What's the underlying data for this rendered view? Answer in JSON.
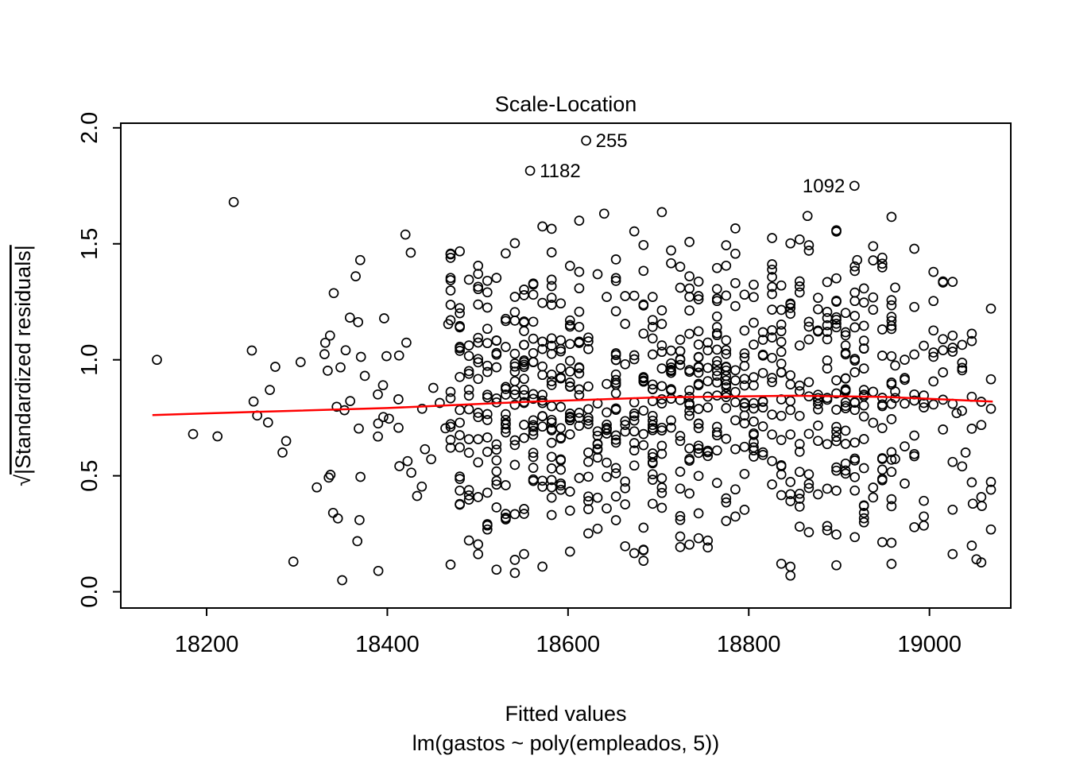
{
  "chart_data": {
    "type": "scatter",
    "title": "Scale-Location",
    "xlabel": "Fitted values",
    "model_label": "lm(gastos ~ poly(empleados, 5))",
    "ylabel": "√|Standardized residuals|",
    "ylabel_sqrt": "√",
    "ylabel_body": "|Standardized residuals|",
    "xlim": [
      18105,
      19090
    ],
    "ylim": [
      -0.07,
      2.02
    ],
    "xticks": [
      18200,
      18400,
      18600,
      18800,
      19000
    ],
    "yticks": [
      0,
      0.5,
      1,
      1.5,
      2
    ],
    "grid": false,
    "legend": false,
    "background": "#ffffff",
    "point_style": {
      "shape": "open-circle",
      "stroke": "#000000",
      "radius": 5.5,
      "stroke_width": 1.7
    },
    "smoother": {
      "name": "scale-location-smoother",
      "color": "#FF0000",
      "stroke_width": 2.5,
      "points": [
        [
          18140,
          0.762
        ],
        [
          18250,
          0.775
        ],
        [
          18400,
          0.792
        ],
        [
          18550,
          0.818
        ],
        [
          18700,
          0.838
        ],
        [
          18850,
          0.845
        ],
        [
          18950,
          0.84
        ],
        [
          19070,
          0.82
        ]
      ]
    },
    "labeled_points": [
      {
        "label": "255",
        "x": 18620,
        "y": 1.945,
        "label_side": "right"
      },
      {
        "label": "1182",
        "x": 18558,
        "y": 1.815,
        "label_side": "right"
      },
      {
        "label": "1092",
        "x": 18917,
        "y": 1.75,
        "label_side": "left"
      }
    ],
    "feature_points": [
      [
        18145,
        1.0
      ],
      [
        18230,
        1.68
      ],
      [
        18185,
        0.68
      ],
      [
        18212,
        0.67
      ],
      [
        18250,
        1.04
      ],
      [
        18252,
        0.82
      ],
      [
        18256,
        0.76
      ],
      [
        18270,
        0.87
      ],
      [
        18276,
        0.97
      ],
      [
        18268,
        0.73
      ],
      [
        18288,
        0.65
      ],
      [
        18284,
        0.6
      ],
      [
        18296,
        0.13
      ],
      [
        18304,
        0.99
      ],
      [
        18322,
        0.45
      ],
      [
        18340,
        0.34
      ],
      [
        18350,
        0.05
      ],
      [
        18390,
        0.09
      ],
      [
        18365,
        1.36
      ],
      [
        18370,
        1.43
      ],
      [
        18420,
        1.54
      ],
      [
        19052,
        0.14
      ],
      [
        19058,
        0.37
      ],
      [
        19048,
        0.38
      ],
      [
        19040,
        0.6
      ],
      [
        19030,
        0.77
      ],
      [
        19036,
        0.78
      ],
      [
        18920,
        1.43
      ],
      [
        18865,
        1.62
      ],
      [
        18640,
        1.63
      ]
    ],
    "point_cloud": {
      "note": "approximate reconstruction of ~950 unlabeled open-circle points",
      "seed": 42,
      "clusters": [
        {
          "n": 46,
          "x_min": 18330,
          "x_max": 18468,
          "cols": 0,
          "y_min": 0.03,
          "y_max": 1.55
        },
        {
          "n": 800,
          "x_min": 18470,
          "x_max": 18958,
          "cols": 49,
          "y_min": 0.02,
          "y_max": 1.66
        },
        {
          "n": 70,
          "x_min": 18962,
          "x_max": 19068,
          "cols": 11,
          "y_min": 0.08,
          "y_max": 1.5
        }
      ]
    }
  }
}
